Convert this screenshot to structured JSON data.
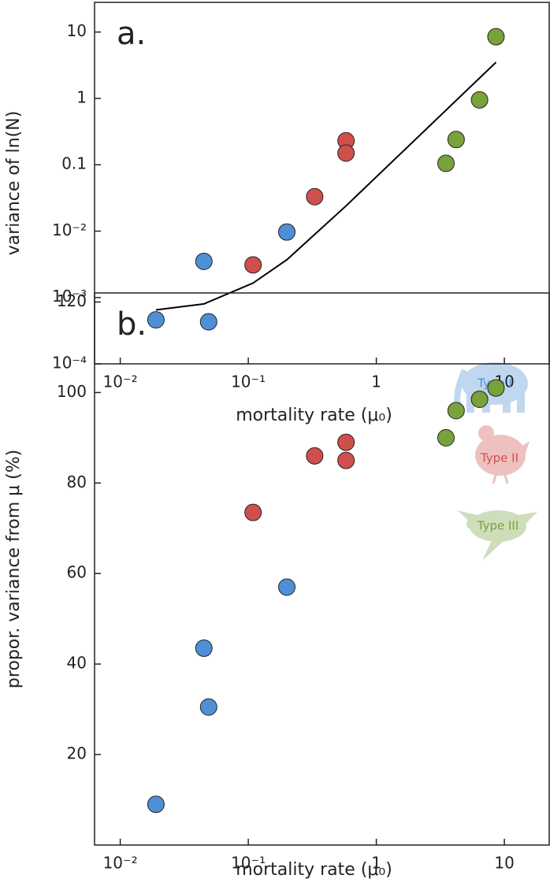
{
  "chart_data": [
    {
      "type": "scatter",
      "label": "a.",
      "xlabel": "mortality rate (μ₀)",
      "ylabel": "variance of ln(N)",
      "log_x": true,
      "log_y": true,
      "xlim": [
        0.0063,
        22.4
      ],
      "ylim": [
        0.0001,
        28
      ],
      "xticks": [
        {
          "value": 0.01,
          "label": "10⁻²"
        },
        {
          "value": 0.1,
          "label": "10⁻¹"
        },
        1,
        10
      ],
      "yticks": [
        {
          "value": 0.0001,
          "label": "10⁻⁴"
        },
        {
          "value": 0.001,
          "label": "10⁻³"
        },
        {
          "value": 0.01,
          "label": "10⁻²"
        },
        0.1,
        1,
        10
      ],
      "series": [
        {
          "color": "#4f8fd6",
          "x": [
            0.019,
            0.045,
            0.049,
            0.2
          ],
          "values": [
            0.00046,
            0.0035,
            0.00043,
            0.0097
          ]
        },
        {
          "color": "#cf4f4c",
          "x": [
            0.109,
            0.33,
            0.58,
            0.58
          ],
          "values": [
            0.0031,
            0.033,
            0.23,
            0.15
          ]
        },
        {
          "color": "#79a23b",
          "x": [
            3.5,
            4.2,
            6.4,
            8.6
          ],
          "values": [
            0.105,
            0.24,
            0.95,
            8.5
          ]
        }
      ],
      "line": {
        "color": "#000000",
        "x": [
          0.019,
          0.045,
          0.109,
          0.2,
          0.58,
          8.6
        ],
        "values": [
          0.00065,
          0.0008,
          0.00165,
          0.0037,
          0.024,
          3.5
        ]
      }
    },
    {
      "type": "scatter",
      "label": "b.",
      "xlabel": "mortality rate (μ₀)",
      "ylabel": "propor. variance from μ (%)",
      "log_x": true,
      "log_y": false,
      "xlim": [
        0.0063,
        22.4
      ],
      "ylim": [
        0,
        122
      ],
      "xticks": [
        {
          "value": 0.01,
          "label": "10⁻²"
        },
        {
          "value": 0.1,
          "label": "10⁻¹"
        },
        1,
        10
      ],
      "yticks": [
        20,
        40,
        60,
        80,
        100,
        120
      ],
      "series": [
        {
          "name": "Type I",
          "color": "#4f8fd6",
          "x": [
            0.019,
            0.045,
            0.049,
            0.2
          ],
          "values": [
            9,
            43.5,
            30.5,
            57
          ]
        },
        {
          "name": "Type II",
          "color": "#cf4f4c",
          "x": [
            0.109,
            0.33,
            0.58,
            0.58
          ],
          "values": [
            73.5,
            86,
            89,
            85
          ]
        },
        {
          "name": "Type III",
          "color": "#79a23b",
          "x": [
            3.5,
            4.2,
            6.4,
            8.6
          ],
          "values": [
            90,
            96,
            98.5,
            101
          ]
        }
      ]
    }
  ]
}
